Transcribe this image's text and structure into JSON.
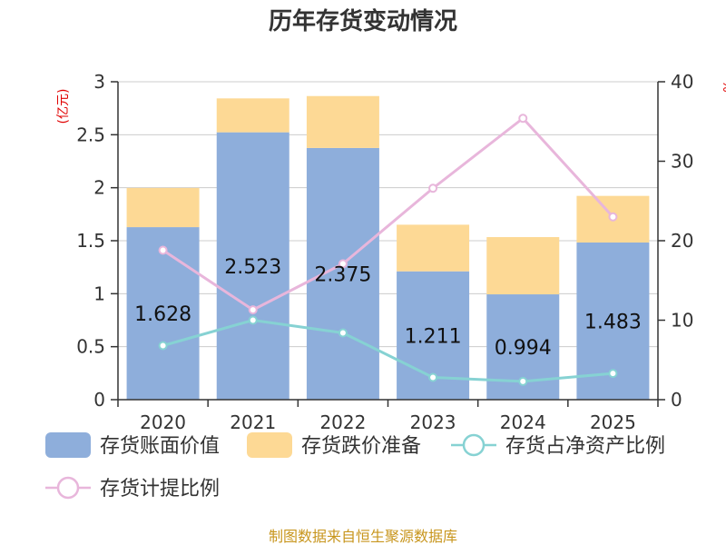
{
  "chart_data": {
    "type": "bar",
    "title": "历年存货变动情况",
    "categories": [
      "2020",
      "2021",
      "2022",
      "2023",
      "2024",
      "2025"
    ],
    "bar_series": [
      {
        "name": "存货账面价值",
        "values": [
          1.628,
          2.523,
          2.375,
          1.211,
          0.994,
          1.483
        ],
        "color": "#8eaedb"
      },
      {
        "name": "存货跌价准备",
        "values": [
          0.37,
          0.32,
          0.49,
          0.44,
          0.54,
          0.44
        ],
        "color": "#fdd995"
      }
    ],
    "bar_value_labels": [
      "1.628",
      "2.523",
      "2.375",
      "1.211",
      "0.994",
      "1.483"
    ],
    "line_series": [
      {
        "name": "存货占净资产比例",
        "values": [
          6.8,
          10,
          8.4,
          2.8,
          2.3,
          3.3
        ],
        "color": "#86d2d3"
      },
      {
        "name": "存货计提比例",
        "values": [
          18.8,
          11.3,
          17.1,
          26.6,
          35.4,
          23
        ],
        "color": "#e8b6db"
      }
    ],
    "left_axis": {
      "unit": "(亿元)",
      "ylim": [
        0,
        3
      ],
      "ticks": [
        "0",
        "0.5",
        "1",
        "1.5",
        "2",
        "2.5",
        "3"
      ],
      "tick_values": [
        0,
        0.5,
        1,
        1.5,
        2,
        2.5,
        3
      ]
    },
    "right_axis": {
      "unit": "%",
      "ylim": [
        0,
        40
      ],
      "ticks": [
        "0",
        "10",
        "20",
        "30",
        "40"
      ],
      "tick_values": [
        0,
        10,
        20,
        30,
        40
      ]
    },
    "grid": true,
    "legend_position": "bottom"
  },
  "source": "制图数据来自恒生聚源数据库"
}
